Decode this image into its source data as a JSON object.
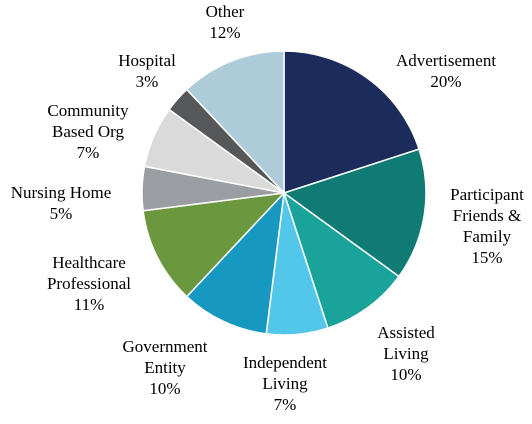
{
  "chart_data": {
    "type": "pie",
    "start_angle_deg": 0,
    "direction": "clockwise",
    "slices": [
      {
        "label": "Advertisement",
        "value": 20,
        "value_label": "20%",
        "color": "#1b2c5c"
      },
      {
        "label": "Participant Friends & Family",
        "value": 15,
        "value_label": "15%",
        "color": "#0f7b74"
      },
      {
        "label": "Assisted Living",
        "value": 10,
        "value_label": "10%",
        "color": "#1aa39a"
      },
      {
        "label": "Independent Living",
        "value": 7,
        "value_label": "7%",
        "color": "#53c7ea"
      },
      {
        "label": "Government Entity",
        "value": 10,
        "value_label": "10%",
        "color": "#1798c0"
      },
      {
        "label": "Healthcare Professional",
        "value": 11,
        "value_label": "11%",
        "color": "#6b973e"
      },
      {
        "label": "Nursing Home",
        "value": 5,
        "value_label": "5%",
        "color": "#9a9ea2"
      },
      {
        "label": "Community Based Org",
        "value": 7,
        "value_label": "7%",
        "color": "#dadada"
      },
      {
        "label": "Hospital",
        "value": 3,
        "value_label": "3%",
        "color": "#555759"
      },
      {
        "label": "Other",
        "value": 12,
        "value_label": "12%",
        "color": "#adcbd8"
      }
    ]
  }
}
